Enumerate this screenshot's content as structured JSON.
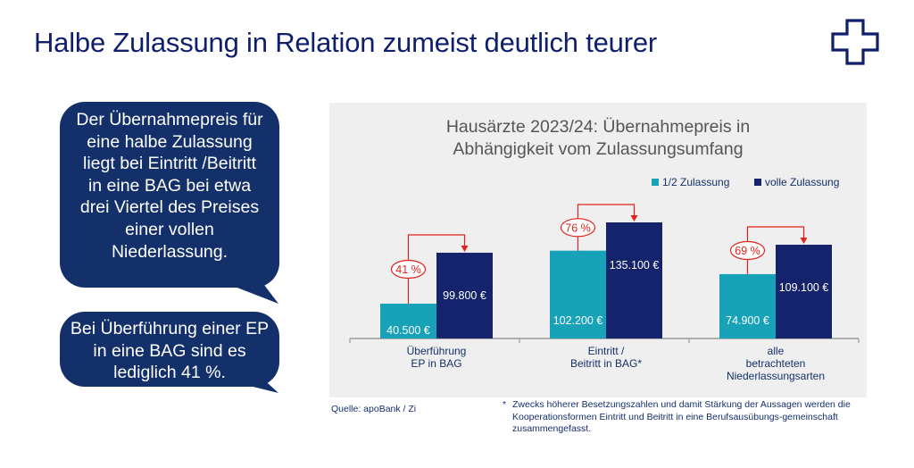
{
  "header": {
    "title": "Halbe Zulassung in Relation zumeist deutlich teurer"
  },
  "logo": {
    "icon": "cross-outline-logo-icon",
    "color": "#0f1f6b"
  },
  "callouts": [
    {
      "text": "Der Übernahmepreis für eine halbe Zulassung liegt bei Eintritt /Beitritt in eine BAG bei etwa drei Viertel des Preises einer vollen Niederlassung."
    },
    {
      "text": "Bei Überführung einer EP in eine BAG sind es lediglich 41 %."
    }
  ],
  "chart_data": {
    "type": "bar",
    "title_lines": [
      "Hausärzte 2023/24: Übernahmepreis in",
      "Abhängigkeit vom Zulassungsumfang"
    ],
    "categories": [
      [
        "Überführung",
        "EP in BAG"
      ],
      [
        "Eintritt /",
        "Beitritt in BAG*"
      ],
      [
        "alle",
        "betrachteten",
        "Niederlassungsarten"
      ]
    ],
    "series": [
      {
        "name": "1/2 Zulassung",
        "color": "#17a2b8",
        "values": [
          40500,
          102200,
          74900
        ],
        "labels": [
          "40.500 €",
          "102.200 €",
          "74.900 €"
        ]
      },
      {
        "name": "volle Zulassung",
        "color": "#14236b",
        "values": [
          99800,
          135100,
          109100
        ],
        "labels": [
          "99.800 €",
          "135.100 €",
          "109.100 €"
        ]
      }
    ],
    "ratios": [
      "41 %",
      "76 %",
      "69 %"
    ],
    "ratio_color": "#e2231a",
    "legend_position": "top-right",
    "ylim": [
      0,
      135100
    ],
    "grid": false,
    "xlabel": "",
    "ylabel": ""
  },
  "footer": {
    "source": "Quelle: apoBank / Zi",
    "footnote_mark": "*",
    "footnote": "Zwecks höherer Besetzungszahlen und damit Stärkung der Aussagen werden die Kooperationsformen Eintritt und Beitritt in eine Berufsausübungs-gemeinschaft zusammengefasst."
  }
}
